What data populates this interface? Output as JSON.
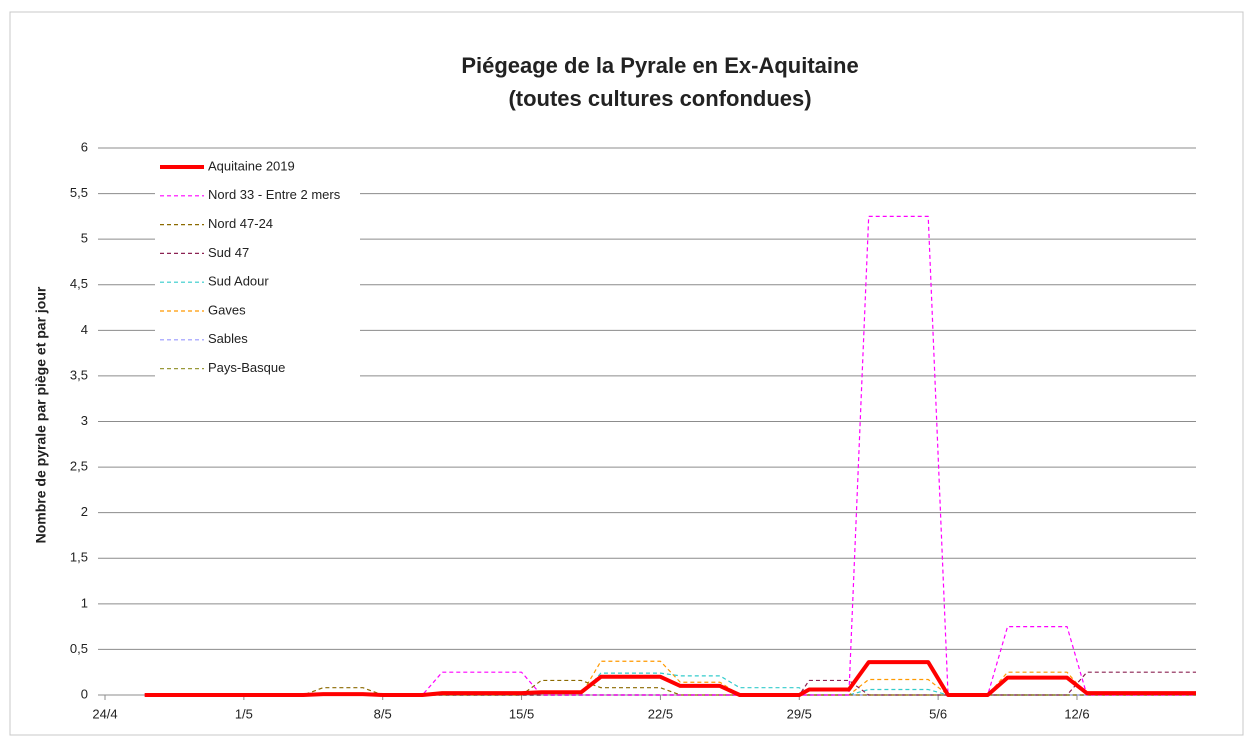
{
  "chart_data": {
    "type": "line",
    "title": "Piégeage de la Pyrale en Ex-Aquitaine",
    "subtitle": "(toutes cultures confondues)",
    "y_label": "Nombre de pyrale par piège et par jour",
    "x": [
      2,
      10,
      11,
      13,
      14,
      16,
      17,
      21,
      22,
      24,
      25,
      28,
      29,
      31,
      32,
      35,
      35.5,
      37.5,
      38.5,
      41.5,
      42.5,
      44.5,
      45.5,
      48.5,
      49.5,
      55
    ],
    "xlim": [
      0,
      55
    ],
    "xticks": [
      {
        "value": 0,
        "label": "24/4"
      },
      {
        "value": 7,
        "label": "1/5"
      },
      {
        "value": 14,
        "label": "8/5"
      },
      {
        "value": 21,
        "label": "15/5"
      },
      {
        "value": 28,
        "label": "22/5"
      },
      {
        "value": 35,
        "label": "29/5"
      },
      {
        "value": 42,
        "label": "5/6"
      },
      {
        "value": 49,
        "label": "12/6"
      }
    ],
    "ylim": [
      0,
      6
    ],
    "yticks": [
      0,
      {
        "value": 0.5,
        "label": "0,5"
      },
      1,
      {
        "value": 1.5,
        "label": "1,5"
      },
      2,
      {
        "value": 2.5,
        "label": "2,5"
      },
      3,
      {
        "value": 3.5,
        "label": "3,5"
      },
      4,
      {
        "value": 4.5,
        "label": "4,5"
      },
      5,
      {
        "value": 5.5,
        "label": "5,5"
      },
      6
    ],
    "grid": true,
    "legend": "upper left",
    "series": [
      {
        "name": "Aquitaine 2019",
        "color": "#ff0000",
        "line_width": 4,
        "line_style": "solid",
        "values": [
          0,
          0,
          0.01,
          0.01,
          0,
          0,
          0.02,
          0.02,
          0.03,
          0.03,
          0.2,
          0.2,
          0.1,
          0.1,
          0,
          0,
          0.06,
          0.06,
          0.36,
          0.36,
          0,
          0,
          0.19,
          0.19,
          0.02,
          0.02
        ]
      },
      {
        "name": "Nord 33 - Entre 2 mers",
        "color": "#ff00ff",
        "line_width": 1.2,
        "line_style": "dashed",
        "values": [
          0,
          0,
          0,
          0,
          0,
          0,
          0.25,
          0.25,
          0,
          0,
          0,
          0,
          0,
          0,
          0,
          0,
          0,
          0,
          5.25,
          5.25,
          0,
          0,
          0.75,
          0.75,
          0,
          0
        ]
      },
      {
        "name": "Nord 47-24",
        "color": "#8c6a00",
        "line_width": 1.2,
        "line_style": "dashed",
        "values": [
          0,
          0,
          0.08,
          0.08,
          0,
          0,
          0,
          0,
          0.16,
          0.16,
          0.08,
          0.08,
          0,
          0,
          0,
          0,
          0,
          0,
          0,
          0,
          0,
          0,
          0,
          0,
          0,
          0
        ]
      },
      {
        "name": "Sud 47",
        "color": "#8b2252",
        "line_width": 1.2,
        "line_style": "dashed",
        "values": [
          0,
          0,
          0,
          0,
          0,
          0,
          0,
          0,
          0,
          0,
          0,
          0,
          0,
          0,
          0,
          0,
          0.16,
          0.16,
          0,
          0,
          0,
          0,
          0,
          0,
          0.25,
          0.25
        ]
      },
      {
        "name": "Sud Adour",
        "color": "#33cccc",
        "line_width": 1.2,
        "line_style": "dashed",
        "values": [
          0,
          0,
          0,
          0,
          0,
          0,
          0,
          0,
          0,
          0,
          0.24,
          0.24,
          0.21,
          0.21,
          0.08,
          0.08,
          0,
          0,
          0.06,
          0.06,
          0,
          0,
          0,
          0,
          0,
          0
        ]
      },
      {
        "name": "Gaves",
        "color": "#ff9900",
        "line_width": 1.2,
        "line_style": "dashed",
        "values": [
          0,
          0,
          0,
          0,
          0,
          0,
          0,
          0,
          0,
          0,
          0.37,
          0.37,
          0.14,
          0.14,
          0,
          0,
          0,
          0,
          0.17,
          0.17,
          0,
          0,
          0.25,
          0.25,
          0,
          0
        ]
      },
      {
        "name": "Sables",
        "color": "#9999ff",
        "line_width": 1.2,
        "line_style": "dashed",
        "values": [
          0,
          0,
          0,
          0,
          0,
          0,
          0,
          0,
          0,
          0,
          0,
          0,
          0,
          0,
          0,
          0,
          0,
          0,
          0,
          0,
          0,
          0,
          0,
          0,
          0,
          0
        ]
      },
      {
        "name": "Pays-Basque",
        "color": "#99993a",
        "line_width": 1.2,
        "line_style": "dashed",
        "values": [
          0,
          0,
          0,
          0,
          0,
          0,
          0,
          0,
          0,
          0,
          0,
          0,
          0,
          0,
          0,
          0,
          0,
          0,
          0,
          0,
          0,
          0,
          0,
          0,
          0,
          0
        ]
      }
    ]
  }
}
